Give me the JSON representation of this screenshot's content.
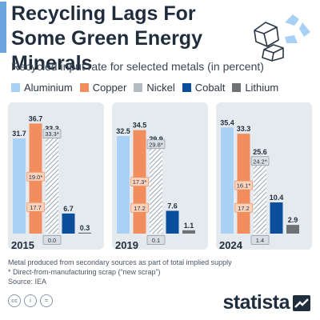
{
  "header": {
    "title": "Recycling Lags For Some Green Energy Minerals",
    "subtitle": "Recycled input rate for selected metals (in percent)"
  },
  "colors": {
    "accent": "#6aa5de",
    "panel_bg": "#e5eaee",
    "aluminium": "#a9d0f5",
    "copper": "#f28e5e",
    "nickel": "#b3bcc5",
    "cobalt": "#0b4f9c",
    "lithium": "#6e7275"
  },
  "legend": [
    {
      "label": "Aluminium",
      "color": "#a9d0f5"
    },
    {
      "label": "Copper",
      "color": "#f28e5e"
    },
    {
      "label": "Nickel",
      "color": "#b3bcc5"
    },
    {
      "label": "Cobalt",
      "color": "#0b4f9c"
    },
    {
      "label": "Lithium",
      "color": "#6e7275"
    }
  ],
  "chart_data": {
    "type": "bar",
    "title": "Recycling Lags For Some Green Energy Minerals",
    "subtitle": "Recycled input rate for selected metals (in percent)",
    "categories": [
      "2015",
      "2019",
      "2024"
    ],
    "series": [
      {
        "name": "Aluminium",
        "values": [
          31.7,
          32.5,
          35.4
        ]
      },
      {
        "name": "Copper",
        "values": [
          36.7,
          34.5,
          33.3
        ]
      },
      {
        "name": "Nickel",
        "values": [
          33.3,
          29.9,
          25.6
        ]
      },
      {
        "name": "Cobalt",
        "values": [
          6.7,
          7.6,
          10.4
        ]
      },
      {
        "name": "Lithium",
        "values": [
          0.3,
          1.1,
          2.9
        ]
      }
    ],
    "new_scrap_labels": {
      "Copper": [
        "19.0*",
        "17.3*",
        "16.1*"
      ],
      "Nickel": [
        "33.3*",
        "29.8*",
        "24.2*"
      ]
    },
    "old_scrap_labels": {
      "Copper": [
        "17.7",
        "17.2",
        "17.2"
      ],
      "Nickel": [
        "0.0",
        "0.1",
        "1.4"
      ]
    },
    "ylim": [
      0,
      40
    ],
    "grid": false,
    "legend_position": "top"
  },
  "footer": {
    "note1": "Metal produced from secondary sources as part of total implied supply",
    "note2": "* Direct-from-manufacturing scrap (“new scrap”)",
    "source": "Source: IEA",
    "brand": "statista"
  }
}
